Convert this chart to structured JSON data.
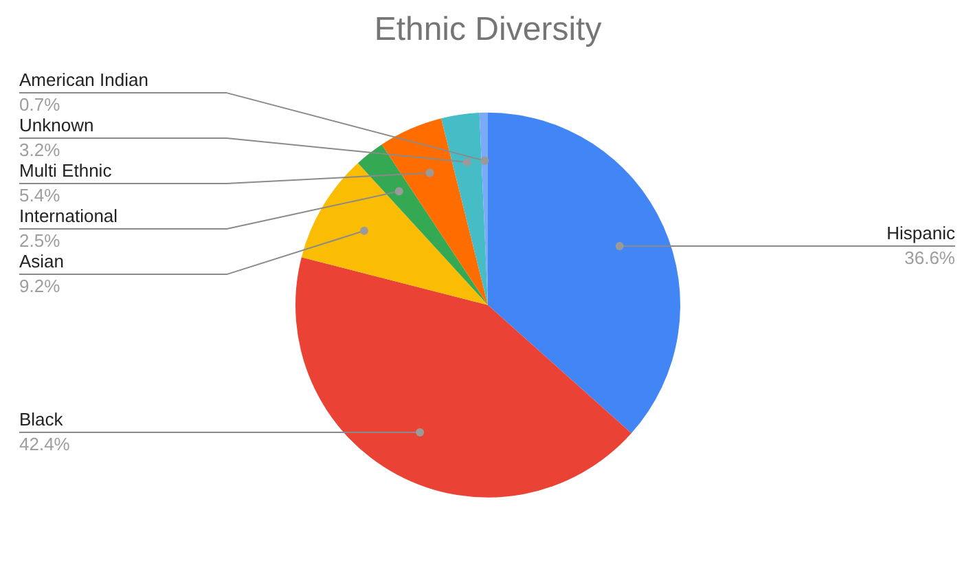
{
  "chart_data": {
    "type": "pie",
    "title": "Ethnic Diversity",
    "categories": [
      "Hispanic",
      "Black",
      "Asian",
      "International",
      "Multi Ethnic",
      "Unknown",
      "American Indian"
    ],
    "values": [
      36.6,
      42.4,
      9.2,
      2.5,
      5.4,
      3.2,
      0.7
    ],
    "colors": [
      "#4285f4",
      "#ea4335",
      "#fbbc04",
      "#34a853",
      "#ff6d01",
      "#46bdc6",
      "#7baaf7"
    ],
    "value_labels": [
      "36.6%",
      "42.4%",
      "9.2%",
      "2.5%",
      "5.4%",
      "3.2%",
      "0.7%"
    ],
    "legend": false
  }
}
